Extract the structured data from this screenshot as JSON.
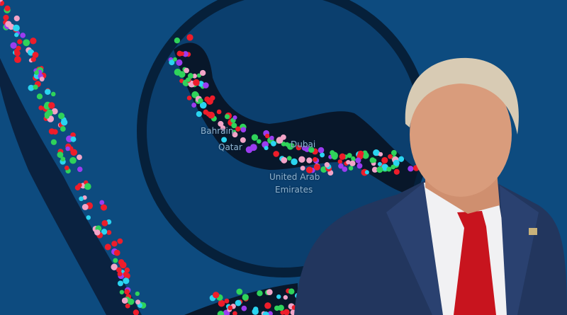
{
  "map": {
    "labels": {
      "bahrain": "Bahrain",
      "qatar": "Qatar",
      "dubai": "Dubai",
      "uae_line1": "United Arab",
      "uae_line2": "Emirates"
    },
    "colors": {
      "sea": "#0d4b7f",
      "lens": "#0b3a66",
      "route": "#08172a",
      "ship_red": "#ee1d2a",
      "ship_green": "#2fd35a",
      "ship_cyan": "#2ad4f0",
      "ship_purple": "#9b3cf0",
      "ship_pink": "#f2a4c8"
    }
  },
  "photo": {
    "subject": "man in navy suit with red tie and white shirt",
    "colors": {
      "suit": "#22365e",
      "tie": "#c8141e",
      "shirt": "#f1f1f3",
      "hair": "#d8cbb4",
      "skin": "#d99c7c"
    }
  }
}
